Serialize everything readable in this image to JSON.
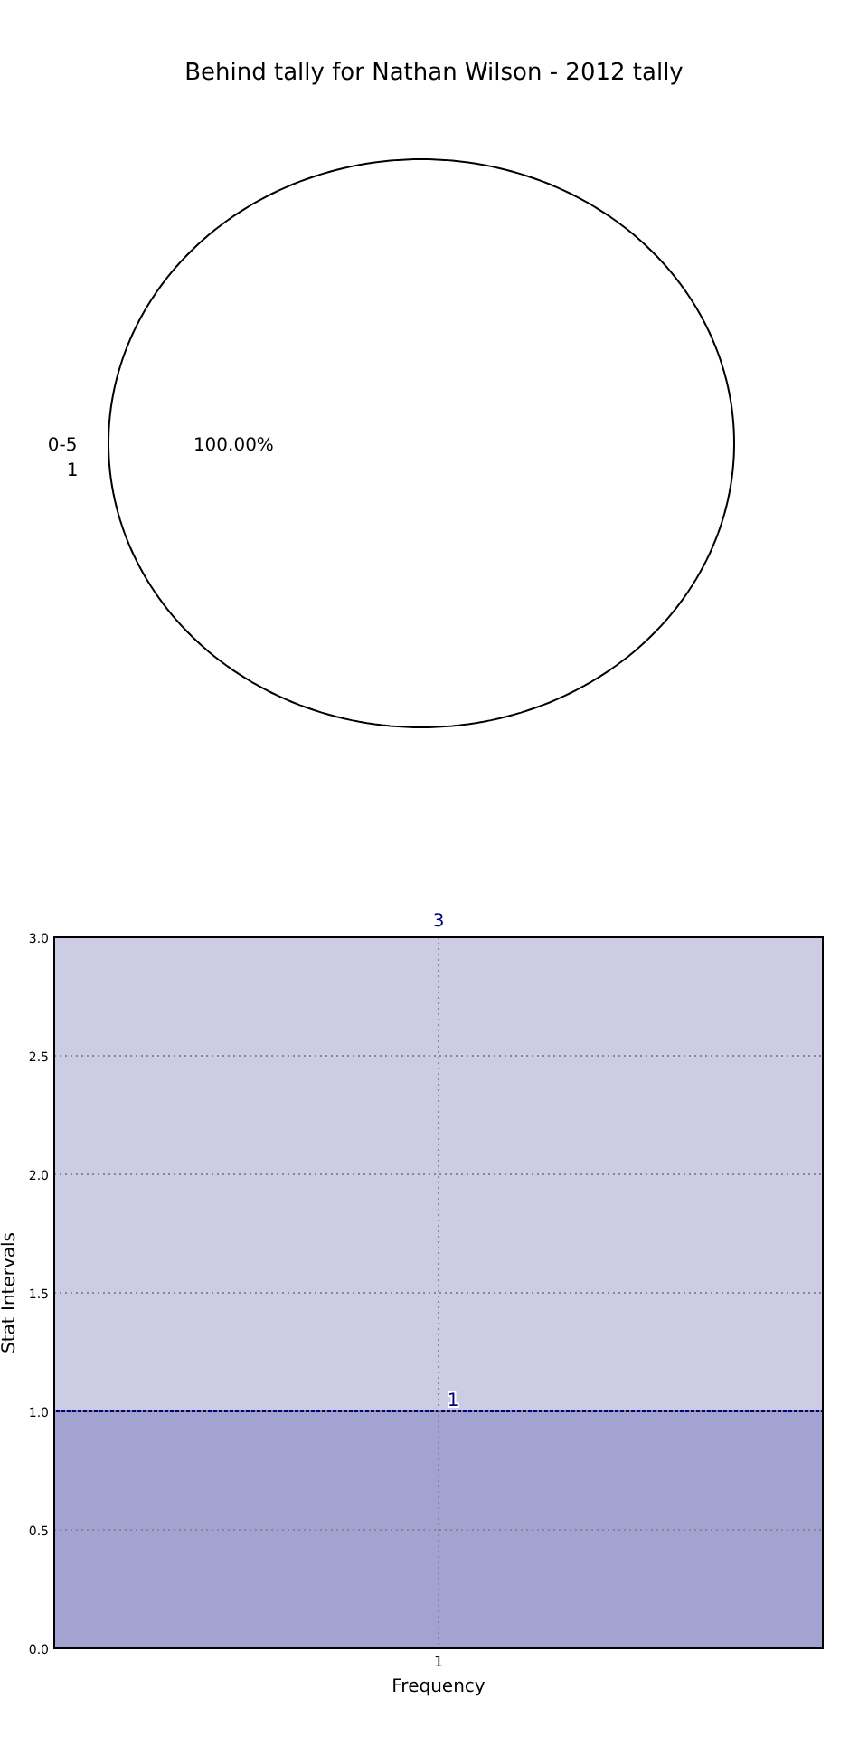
{
  "chart_data": [
    {
      "type": "pie",
      "title": "Behind tally for Nathan Wilson - 2012 tally",
      "categories": [
        "0-5"
      ],
      "values": [
        100
      ],
      "colors": [
        "#ffffff"
      ],
      "value_labels": [
        "100.00%"
      ],
      "annotations": [
        "1"
      ]
    },
    {
      "type": "bar",
      "categories": [
        "1"
      ],
      "stacked": true,
      "xlabel": "Frequency",
      "ylabel": "Stat Intervals",
      "ylim": [
        0,
        3
      ],
      "yticks": [
        {
          "value": 0,
          "label": "0.0"
        },
        {
          "value": 0.5,
          "label": "0.5"
        },
        {
          "value": 1,
          "label": "1.0"
        },
        {
          "value": 1.5,
          "label": "1.5"
        },
        {
          "value": 2,
          "label": "2.0"
        },
        {
          "value": 2.5,
          "label": "2.5"
        },
        {
          "value": 3,
          "label": "3.0"
        }
      ],
      "grid": true,
      "series": [
        {
          "color": "#a3a3d1",
          "values": [
            1
          ],
          "value_labels": [
            "1"
          ]
        },
        {
          "color": "#cccce5",
          "values": [
            2
          ]
        }
      ],
      "totals": [
        "3"
      ]
    }
  ]
}
